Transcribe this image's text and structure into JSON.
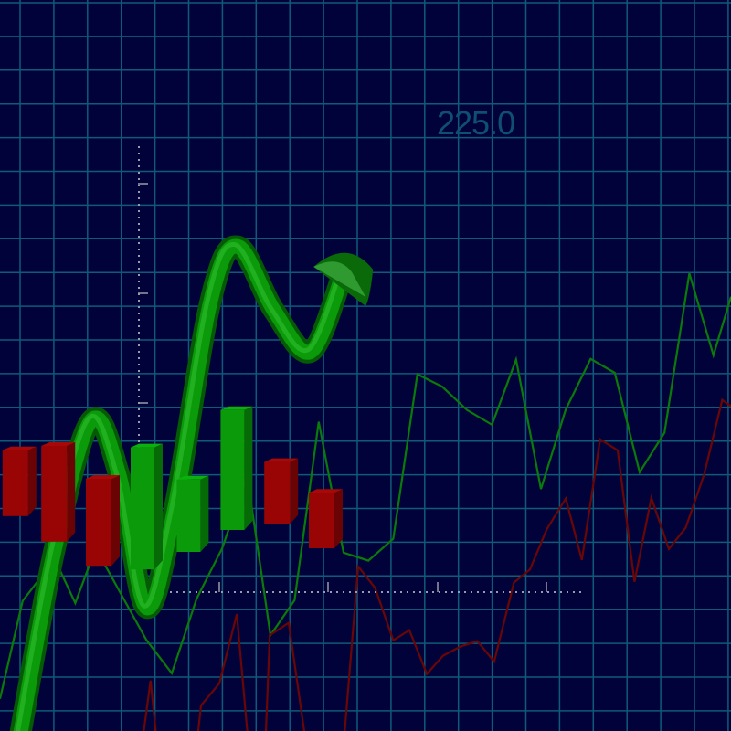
{
  "chart_data": {
    "type": "line",
    "title": "",
    "annotation": "225.0",
    "grid": true,
    "colors": {
      "background": "#02023a",
      "grid": "#0e5a78",
      "up": "#0a9a0a",
      "down": "#9a0606",
      "line_up": "#0a7a0a",
      "line_down": "#6a0606",
      "annotation": "#0f4f72",
      "axis": "#9a9aa8"
    },
    "xlim": [
      0,
      100
    ],
    "ylim": [
      0,
      100
    ],
    "series": [
      {
        "color": "#0a7a0a",
        "points": [
          [
            0,
            4.4
          ],
          [
            3.1,
            17.8
          ],
          [
            7.5,
            23.5
          ],
          [
            10.3,
            17.5
          ],
          [
            13.1,
            25
          ],
          [
            20,
            12.5
          ],
          [
            23.5,
            7.9
          ],
          [
            26.9,
            18.1
          ],
          [
            30.4,
            25
          ],
          [
            33.8,
            35
          ],
          [
            37,
            13.1
          ],
          [
            40.3,
            17.9
          ],
          [
            43.6,
            42.3
          ],
          [
            47,
            24.4
          ],
          [
            50.4,
            23.3
          ],
          [
            53.8,
            26.3
          ],
          [
            57.1,
            48.8
          ],
          [
            60.5,
            47.1
          ],
          [
            63.9,
            43.9
          ],
          [
            67.3,
            41.9
          ],
          [
            70.6,
            50.8
          ],
          [
            74,
            33.1
          ],
          [
            77.4,
            44
          ],
          [
            80.8,
            50.9
          ],
          [
            84.1,
            49
          ],
          [
            87.5,
            35.4
          ],
          [
            90.9,
            40.8
          ],
          [
            94.3,
            62.6
          ],
          [
            97.6,
            51.4
          ],
          [
            100,
            59.4
          ]
        ]
      },
      {
        "color": "#6a0606",
        "points": [
          [
            19.4,
            -2
          ],
          [
            20.6,
            6.9
          ],
          [
            21.5,
            -2
          ],
          [
            26.9,
            -2
          ],
          [
            27.5,
            3.5
          ],
          [
            30,
            6.5
          ],
          [
            32.4,
            16
          ],
          [
            34,
            -2
          ],
          [
            36.3,
            -2
          ],
          [
            36.9,
            13.1
          ],
          [
            39.5,
            14.8
          ],
          [
            41.9,
            -2
          ],
          [
            47,
            -2
          ],
          [
            49,
            22.5
          ],
          [
            51.3,
            19.6
          ],
          [
            53.8,
            12.4
          ],
          [
            56,
            13.8
          ],
          [
            58.4,
            7.8
          ],
          [
            60.6,
            10.3
          ],
          [
            63.1,
            11.6
          ],
          [
            65.3,
            12.3
          ],
          [
            67.6,
            9.5
          ],
          [
            70.3,
            20.3
          ],
          [
            72.5,
            22.1
          ],
          [
            74.8,
            27.6
          ],
          [
            77.4,
            31.8
          ],
          [
            79.6,
            23.4
          ],
          [
            82.1,
            39.9
          ],
          [
            84.5,
            38.4
          ],
          [
            86.8,
            20.4
          ],
          [
            89.1,
            31.9
          ],
          [
            91.5,
            24.9
          ],
          [
            93.8,
            27.8
          ],
          [
            96.3,
            35
          ],
          [
            98.8,
            45.3
          ],
          [
            100,
            44.4
          ]
        ]
      }
    ],
    "ribbon": [
      [
        2.5,
        -2
      ],
      [
        7.5,
        25
      ],
      [
        12.5,
        42.5
      ],
      [
        16.3,
        35
      ],
      [
        20,
        16.9
      ],
      [
        23.8,
        30
      ],
      [
        28.8,
        58.8
      ],
      [
        32.5,
        66.3
      ],
      [
        37.5,
        57.5
      ],
      [
        42.5,
        51.9
      ],
      [
        46.9,
        62.5
      ]
    ],
    "candles": [
      {
        "x": 2.1,
        "top": 38.4,
        "bottom": 29.4,
        "dir": "down"
      },
      {
        "x": 7.4,
        "top": 39,
        "bottom": 25.9,
        "dir": "down"
      },
      {
        "x": 13.5,
        "top": 34.5,
        "bottom": 22.6,
        "dir": "down"
      },
      {
        "x": 19.5,
        "top": 38.8,
        "bottom": 22.1,
        "dir": "up"
      },
      {
        "x": 25.8,
        "top": 34.4,
        "bottom": 24.5,
        "dir": "up"
      },
      {
        "x": 31.8,
        "top": 43.9,
        "bottom": 27.5,
        "dir": "up"
      },
      {
        "x": 37.9,
        "top": 36.8,
        "bottom": 28.3,
        "dir": "down"
      },
      {
        "x": 44,
        "top": 32.6,
        "bottom": 25,
        "dir": "down"
      }
    ]
  }
}
